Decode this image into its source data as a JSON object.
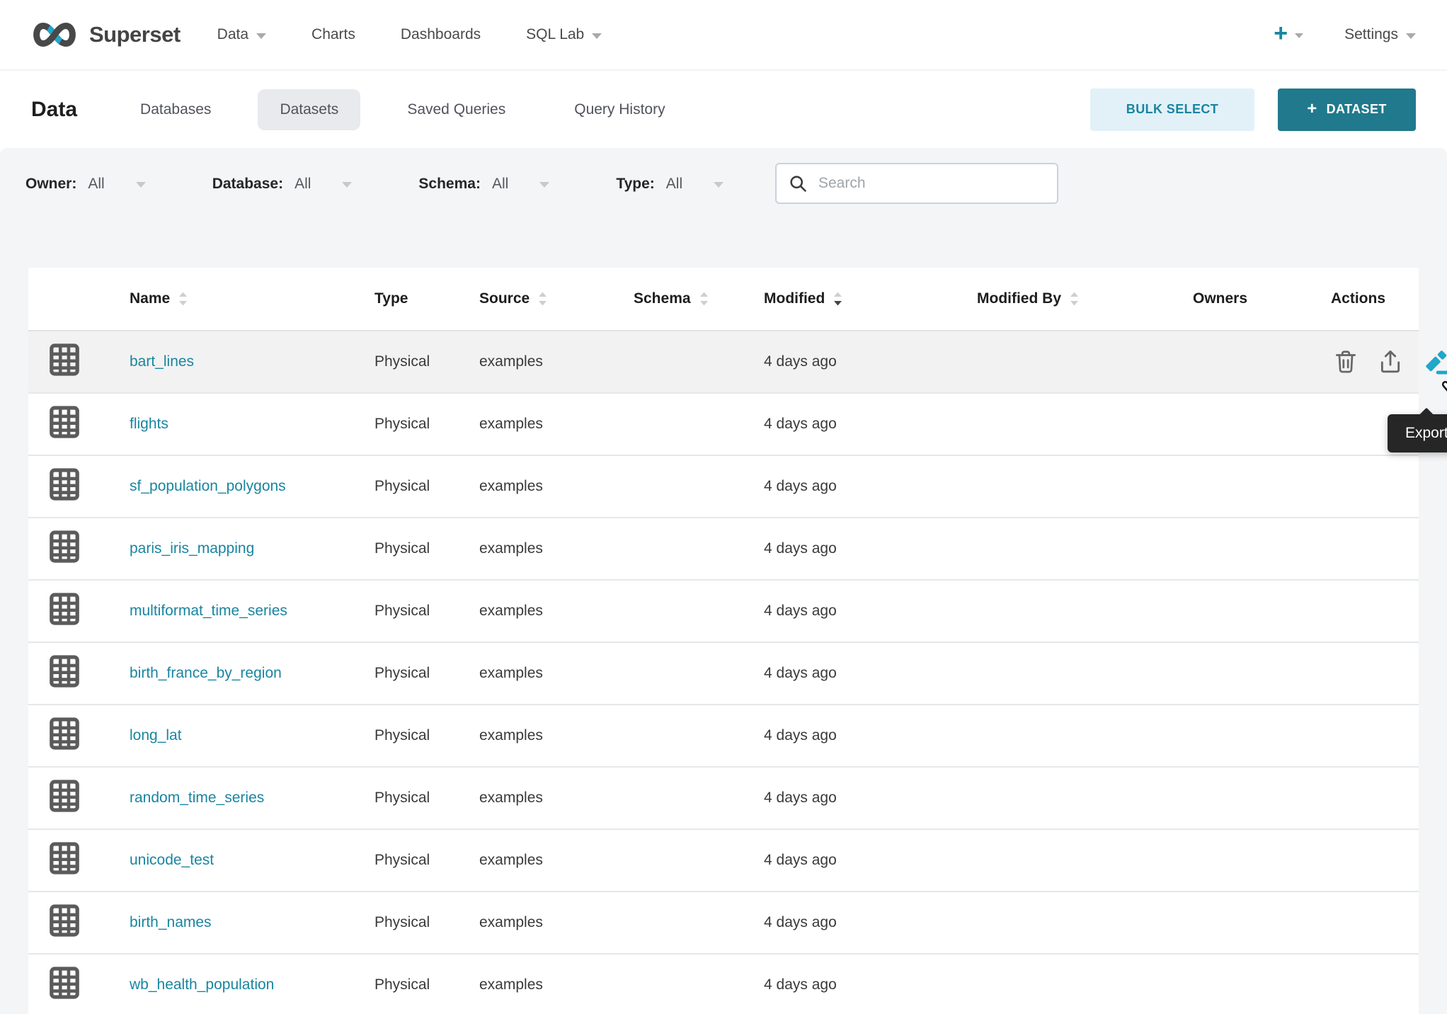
{
  "navbar": {
    "brand": "Superset",
    "items": [
      {
        "label": "Data",
        "caret": true
      },
      {
        "label": "Charts",
        "caret": false
      },
      {
        "label": "Dashboards",
        "caret": false
      },
      {
        "label": "SQL Lab",
        "caret": true
      }
    ],
    "plus_label": "+",
    "settings_label": "Settings"
  },
  "header": {
    "title": "Data",
    "tabs": [
      {
        "label": "Databases",
        "active": false
      },
      {
        "label": "Datasets",
        "active": true
      },
      {
        "label": "Saved Queries",
        "active": false
      },
      {
        "label": "Query History",
        "active": false
      }
    ],
    "bulk_select_label": "BULK SELECT",
    "add_dataset_plus": "+",
    "add_dataset_label": "DATASET"
  },
  "filters": [
    {
      "label": "Owner:",
      "value": "All"
    },
    {
      "label": "Database:",
      "value": "All"
    },
    {
      "label": "Schema:",
      "value": "All"
    },
    {
      "label": "Type:",
      "value": "All"
    }
  ],
  "search": {
    "placeholder": "Search"
  },
  "table": {
    "columns": [
      {
        "key": "icon",
        "label": "",
        "sortable": false
      },
      {
        "key": "name",
        "label": "Name",
        "sortable": true
      },
      {
        "key": "type",
        "label": "Type",
        "sortable": false
      },
      {
        "key": "source",
        "label": "Source",
        "sortable": true
      },
      {
        "key": "schema",
        "label": "Schema",
        "sortable": true
      },
      {
        "key": "modified",
        "label": "Modified",
        "sortable": true,
        "sort": "desc"
      },
      {
        "key": "modified_by",
        "label": "Modified By",
        "sortable": true
      },
      {
        "key": "owners",
        "label": "Owners",
        "sortable": false
      },
      {
        "key": "actions",
        "label": "Actions",
        "sortable": false
      }
    ],
    "rows": [
      {
        "name": "bart_lines",
        "type": "Physical",
        "source": "examples",
        "schema": "",
        "modified": "4 days ago",
        "modified_by": "",
        "owners": "",
        "hovered": true,
        "actions": [
          "delete",
          "export",
          "edit"
        ]
      },
      {
        "name": "flights",
        "type": "Physical",
        "source": "examples",
        "schema": "",
        "modified": "4 days ago",
        "modified_by": "",
        "owners": "",
        "hovered": false
      },
      {
        "name": "sf_population_polygons",
        "type": "Physical",
        "source": "examples",
        "schema": "",
        "modified": "4 days ago",
        "modified_by": "",
        "owners": "",
        "hovered": false
      },
      {
        "name": "paris_iris_mapping",
        "type": "Physical",
        "source": "examples",
        "schema": "",
        "modified": "4 days ago",
        "modified_by": "",
        "owners": "",
        "hovered": false
      },
      {
        "name": "multiformat_time_series",
        "type": "Physical",
        "source": "examples",
        "schema": "",
        "modified": "4 days ago",
        "modified_by": "",
        "owners": "",
        "hovered": false
      },
      {
        "name": "birth_france_by_region",
        "type": "Physical",
        "source": "examples",
        "schema": "",
        "modified": "4 days ago",
        "modified_by": "",
        "owners": "",
        "hovered": false
      },
      {
        "name": "long_lat",
        "type": "Physical",
        "source": "examples",
        "schema": "",
        "modified": "4 days ago",
        "modified_by": "",
        "owners": "",
        "hovered": false
      },
      {
        "name": "random_time_series",
        "type": "Physical",
        "source": "examples",
        "schema": "",
        "modified": "4 days ago",
        "modified_by": "",
        "owners": "",
        "hovered": false
      },
      {
        "name": "unicode_test",
        "type": "Physical",
        "source": "examples",
        "schema": "",
        "modified": "4 days ago",
        "modified_by": "",
        "owners": "",
        "hovered": false
      },
      {
        "name": "birth_names",
        "type": "Physical",
        "source": "examples",
        "schema": "",
        "modified": "4 days ago",
        "modified_by": "",
        "owners": "",
        "hovered": false
      },
      {
        "name": "wb_health_population",
        "type": "Physical",
        "source": "examples",
        "schema": "",
        "modified": "4 days ago",
        "modified_by": "",
        "owners": "",
        "hovered": false
      }
    ]
  },
  "tooltip": {
    "text": "Export"
  },
  "colors": {
    "accent": "#20A7C9",
    "link": "#1985A0",
    "dataset_btn": "#20798C",
    "bulk_bg": "#E2F1F8",
    "bulk_text": "#1985A0",
    "tooltip_bg": "#262626",
    "hover_row": "#F2F2F2"
  }
}
